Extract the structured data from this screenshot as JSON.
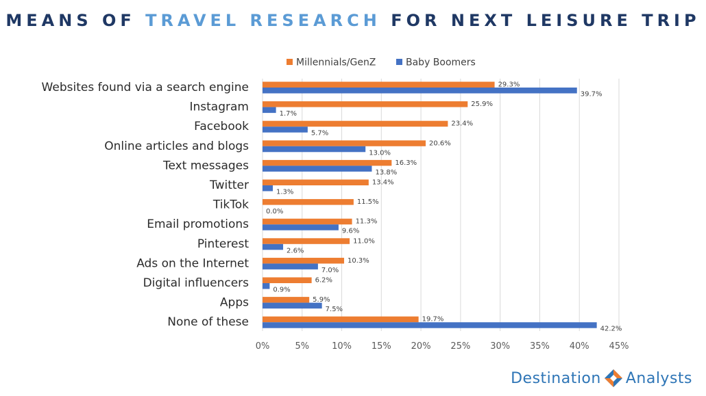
{
  "title": {
    "part1": "MEANS OF ",
    "part2": "TRAVEL RESEARCH",
    "part3": " FOR NEXT LEISURE TRIP"
  },
  "colors": {
    "millennials": "#ed7d31",
    "boomers": "#4472c4",
    "title_dark": "#1f3864",
    "title_highlight": "#5b9bd5",
    "grid": "#d9d9d9"
  },
  "logo": {
    "word1": "Destination",
    "word2": "Analysts",
    "icon": "diamond-arrows-icon"
  },
  "chart_data": {
    "type": "bar",
    "orientation": "horizontal",
    "categories": [
      "Websites found via a search engine",
      "Instagram",
      "Facebook",
      "Online articles and blogs",
      "Text messages",
      "Twitter",
      "TikTok",
      "Email promotions",
      "Pinterest",
      "Ads on the Internet",
      "Digital influencers",
      "Apps",
      "None of these"
    ],
    "series": [
      {
        "name": "Millennials/GenZ",
        "values": [
          29.3,
          25.9,
          23.4,
          20.6,
          16.3,
          13.4,
          11.5,
          11.3,
          11.0,
          10.3,
          6.2,
          5.9,
          19.7
        ],
        "labels": [
          "29.3%",
          "25.9%",
          "23.4%",
          "20.6%",
          "16.3%",
          "13.4%",
          "11.5%",
          "11.3%",
          "11.0%",
          "10.3%",
          "6.2%",
          "5.9%",
          "19.7%"
        ]
      },
      {
        "name": "Baby Boomers",
        "values": [
          39.7,
          1.7,
          5.7,
          13.0,
          13.8,
          1.3,
          0.0,
          9.6,
          2.6,
          7.0,
          0.9,
          7.5,
          42.2
        ],
        "labels": [
          "39.7%",
          "1.7%",
          "5.7%",
          "13.0%",
          "13.8%",
          "1.3%",
          "0.0%",
          "9.6%",
          "2.6%",
          "7.0%",
          "0.9%",
          "7.5%",
          "42.2%"
        ]
      }
    ],
    "xlim": [
      0,
      45
    ],
    "xticks": [
      0,
      5,
      10,
      15,
      20,
      25,
      30,
      35,
      40,
      45
    ],
    "xtick_labels": [
      "0%",
      "5%",
      "10%",
      "15%",
      "20%",
      "25%",
      "30%",
      "35%",
      "40%",
      "45%"
    ],
    "grid": true,
    "legend_position": "top"
  }
}
